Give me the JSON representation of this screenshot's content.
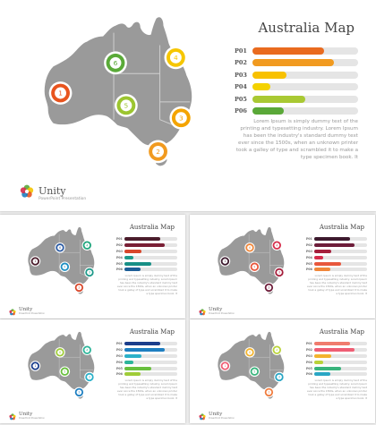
{
  "slides": [
    {
      "title": "Australia Map",
      "description": "Lorem Ipsum is simply dummy text of the printing and typesetting industry. Lorem Ipsum has been the industry's standard dummy text ever since the 1500s, when an unknown printer took a galley of type and scrambled it to make a type specimen book. It",
      "brand": {
        "name": "Unity",
        "subtitle": "PowerPoint Presentation"
      },
      "bars": [
        {
          "label": "P01",
          "value": 0.68,
          "color": "#e96b1f"
        },
        {
          "label": "P02",
          "value": 0.77,
          "color": "#f19a1f"
        },
        {
          "label": "P03",
          "value": 0.32,
          "color": "#f8c100"
        },
        {
          "label": "P04",
          "value": 0.17,
          "color": "#f4d200"
        },
        {
          "label": "P05",
          "value": 0.5,
          "color": "#a9c933"
        },
        {
          "label": "P06",
          "value": 0.3,
          "color": "#5aa838"
        }
      ],
      "markers": [
        {
          "num": "1",
          "color": "#e8541e"
        },
        {
          "num": "2",
          "color": "#f19a1f"
        },
        {
          "num": "3",
          "color": "#f4a400"
        },
        {
          "num": "4",
          "color": "#f6c600"
        },
        {
          "num": "5",
          "color": "#9cc530"
        },
        {
          "num": "6",
          "color": "#5aaa38"
        }
      ]
    },
    {
      "title": "Australia Map",
      "description": "Lorem Ipsum is simply dummy text of the printing and typesetting industry. Lorem Ipsum has been the industry's standard dummy text ever since the 1500s, when an unknown printer took a galley of type and scrambled it to make a type specimen book. It",
      "brand": {
        "name": "Unity",
        "subtitle": "PowerPoint Presentation"
      },
      "bars": [
        {
          "label": "P01",
          "value": 0.68,
          "color": "#4b1d2c"
        },
        {
          "label": "P02",
          "value": 0.77,
          "color": "#7a1f35"
        },
        {
          "label": "P03",
          "value": 0.32,
          "color": "#d9472b"
        },
        {
          "label": "P04",
          "value": 0.17,
          "color": "#1f9a8a"
        },
        {
          "label": "P05",
          "value": 0.5,
          "color": "#178f86"
        },
        {
          "label": "P06",
          "value": 0.3,
          "color": "#1d5e96"
        }
      ],
      "markers": [
        {
          "num": "1",
          "color": "#4b1d2c"
        },
        {
          "num": "2",
          "color": "#d9472b"
        },
        {
          "num": "3",
          "color": "#1f9a8a"
        },
        {
          "num": "4",
          "color": "#1ea57c"
        },
        {
          "num": "5",
          "color": "#1d8fc3"
        },
        {
          "num": "6",
          "color": "#2a5aa3"
        }
      ]
    },
    {
      "title": "Australia Map",
      "description": "Lorem Ipsum is simply dummy text of the printing and typesetting industry. Lorem Ipsum has been the industry's standard dummy text ever since the 1500s, when an unknown printer took a galley of type and scrambled it to make a type specimen book. It",
      "brand": {
        "name": "Unity",
        "subtitle": "PowerPoint Presentation"
      },
      "bars": [
        {
          "label": "P01",
          "value": 0.68,
          "color": "#3d1a2e"
        },
        {
          "label": "P02",
          "value": 0.77,
          "color": "#6e1d3a"
        },
        {
          "label": "P03",
          "value": 0.32,
          "color": "#a51f3c"
        },
        {
          "label": "P04",
          "value": 0.17,
          "color": "#d62d4b"
        },
        {
          "label": "P05",
          "value": 0.5,
          "color": "#e8573c"
        },
        {
          "label": "P06",
          "value": 0.3,
          "color": "#f0873a"
        }
      ],
      "markers": [
        {
          "num": "1",
          "color": "#3d1a2e"
        },
        {
          "num": "2",
          "color": "#6e1d3a"
        },
        {
          "num": "3",
          "color": "#a51f3c"
        },
        {
          "num": "4",
          "color": "#d62d4b"
        },
        {
          "num": "5",
          "color": "#e8573c"
        },
        {
          "num": "6",
          "color": "#f0873a"
        }
      ]
    },
    {
      "title": "Australia Map",
      "description": "Lorem Ipsum is simply dummy text of the printing and typesetting industry. Lorem Ipsum has been the industry's standard dummy text ever since the 1500s, when an unknown printer took a galley of type and scrambled it to make a type specimen book. It",
      "brand": {
        "name": "Unity",
        "subtitle": "PowerPoint Presentation"
      },
      "bars": [
        {
          "label": "P01",
          "value": 0.68,
          "color": "#1b3e8c"
        },
        {
          "label": "P02",
          "value": 0.77,
          "color": "#1e7fc1"
        },
        {
          "label": "P03",
          "value": 0.32,
          "color": "#2bb1c9"
        },
        {
          "label": "P04",
          "value": 0.17,
          "color": "#2db59a"
        },
        {
          "label": "P05",
          "value": 0.5,
          "color": "#69bf3e"
        },
        {
          "label": "P06",
          "value": 0.3,
          "color": "#9fcc38"
        }
      ],
      "markers": [
        {
          "num": "1",
          "color": "#1b3e8c"
        },
        {
          "num": "2",
          "color": "#1e7fc1"
        },
        {
          "num": "3",
          "color": "#2bb1c9"
        },
        {
          "num": "4",
          "color": "#2db59a"
        },
        {
          "num": "5",
          "color": "#69bf3e"
        },
        {
          "num": "6",
          "color": "#9fcc38"
        }
      ]
    },
    {
      "title": "Australia Map",
      "description": "Lorem Ipsum is simply dummy text of the printing and typesetting industry. Lorem Ipsum has been the industry's standard dummy text ever since the 1500s, when an unknown printer took a galley of type and scrambled it to make a type specimen book. It",
      "brand": {
        "name": "Unity",
        "subtitle": "PowerPoint Presentation"
      },
      "bars": [
        {
          "label": "P01",
          "value": 0.68,
          "color": "#f07c6e"
        },
        {
          "label": "P02",
          "value": 0.77,
          "color": "#ef5e74"
        },
        {
          "label": "P03",
          "value": 0.32,
          "color": "#f3b32d"
        },
        {
          "label": "P04",
          "value": 0.17,
          "color": "#b9d33a"
        },
        {
          "label": "P05",
          "value": 0.5,
          "color": "#39b47c"
        },
        {
          "label": "P06",
          "value": 0.3,
          "color": "#2aa6c4"
        }
      ],
      "markers": [
        {
          "num": "1",
          "color": "#ef5e74"
        },
        {
          "num": "2",
          "color": "#f07c3e"
        },
        {
          "num": "3",
          "color": "#2aa6c4"
        },
        {
          "num": "4",
          "color": "#b9d33a"
        },
        {
          "num": "5",
          "color": "#39b47c"
        },
        {
          "num": "6",
          "color": "#f3b32d"
        }
      ]
    }
  ]
}
